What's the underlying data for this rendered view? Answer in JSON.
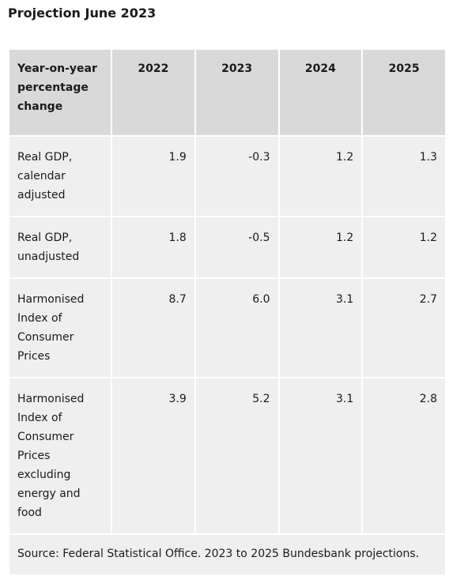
{
  "title": "Projection June 2023",
  "table": {
    "header": {
      "label": "Year-on-year percentage change",
      "years": [
        "2022",
        "2023",
        "2024",
        "2025"
      ]
    },
    "rows": [
      {
        "label": "Real GDP, calendar adjusted",
        "values": [
          "1.9",
          "-0.3",
          "1.2",
          "1.3"
        ]
      },
      {
        "label": "Real GDP, unadjusted",
        "values": [
          "1.8",
          "-0.5",
          "1.2",
          "1.2"
        ]
      },
      {
        "label": "Harmonised Index of Consumer Prices",
        "values": [
          "8.7",
          "6.0",
          "3.1",
          "2.7"
        ]
      },
      {
        "label": "Harmonised Index of Consumer Prices excluding energy and food",
        "values": [
          "3.9",
          "5.2",
          "3.1",
          "2.8"
        ]
      }
    ],
    "source": "Source: Federal Statistical Office. 2023 to 2025 Bundesbank projections."
  }
}
